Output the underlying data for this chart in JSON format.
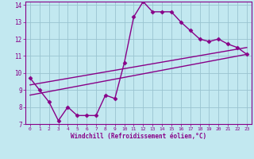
{
  "xlabel": "Windchill (Refroidissement éolien,°C)",
  "xlim": [
    -0.5,
    23.5
  ],
  "ylim": [
    7,
    14.2
  ],
  "yticks": [
    7,
    8,
    9,
    10,
    11,
    12,
    13,
    14
  ],
  "xticks": [
    0,
    1,
    2,
    3,
    4,
    5,
    6,
    7,
    8,
    9,
    10,
    11,
    12,
    13,
    14,
    15,
    16,
    17,
    18,
    19,
    20,
    21,
    22,
    23
  ],
  "bg_color": "#c2e8f0",
  "grid_color": "#9ac4d0",
  "line_color": "#880088",
  "curve_x": [
    0,
    1,
    2,
    3,
    4,
    5,
    6,
    7,
    8,
    9,
    10,
    11,
    12,
    13,
    14,
    15,
    16,
    17,
    18,
    19,
    20,
    21,
    22,
    23
  ],
  "curve_y": [
    9.7,
    9.0,
    8.3,
    7.2,
    8.0,
    7.5,
    7.5,
    7.5,
    8.7,
    8.5,
    10.6,
    13.3,
    14.2,
    13.6,
    13.6,
    13.6,
    13.0,
    12.5,
    12.0,
    11.85,
    12.0,
    11.7,
    11.5,
    11.1
  ],
  "trend1_x": [
    0,
    23
  ],
  "trend1_y": [
    9.3,
    11.5
  ],
  "trend2_x": [
    0,
    23
  ],
  "trend2_y": [
    8.7,
    11.1
  ],
  "marker": "D",
  "marker_size": 2.5,
  "line_width": 1.0
}
